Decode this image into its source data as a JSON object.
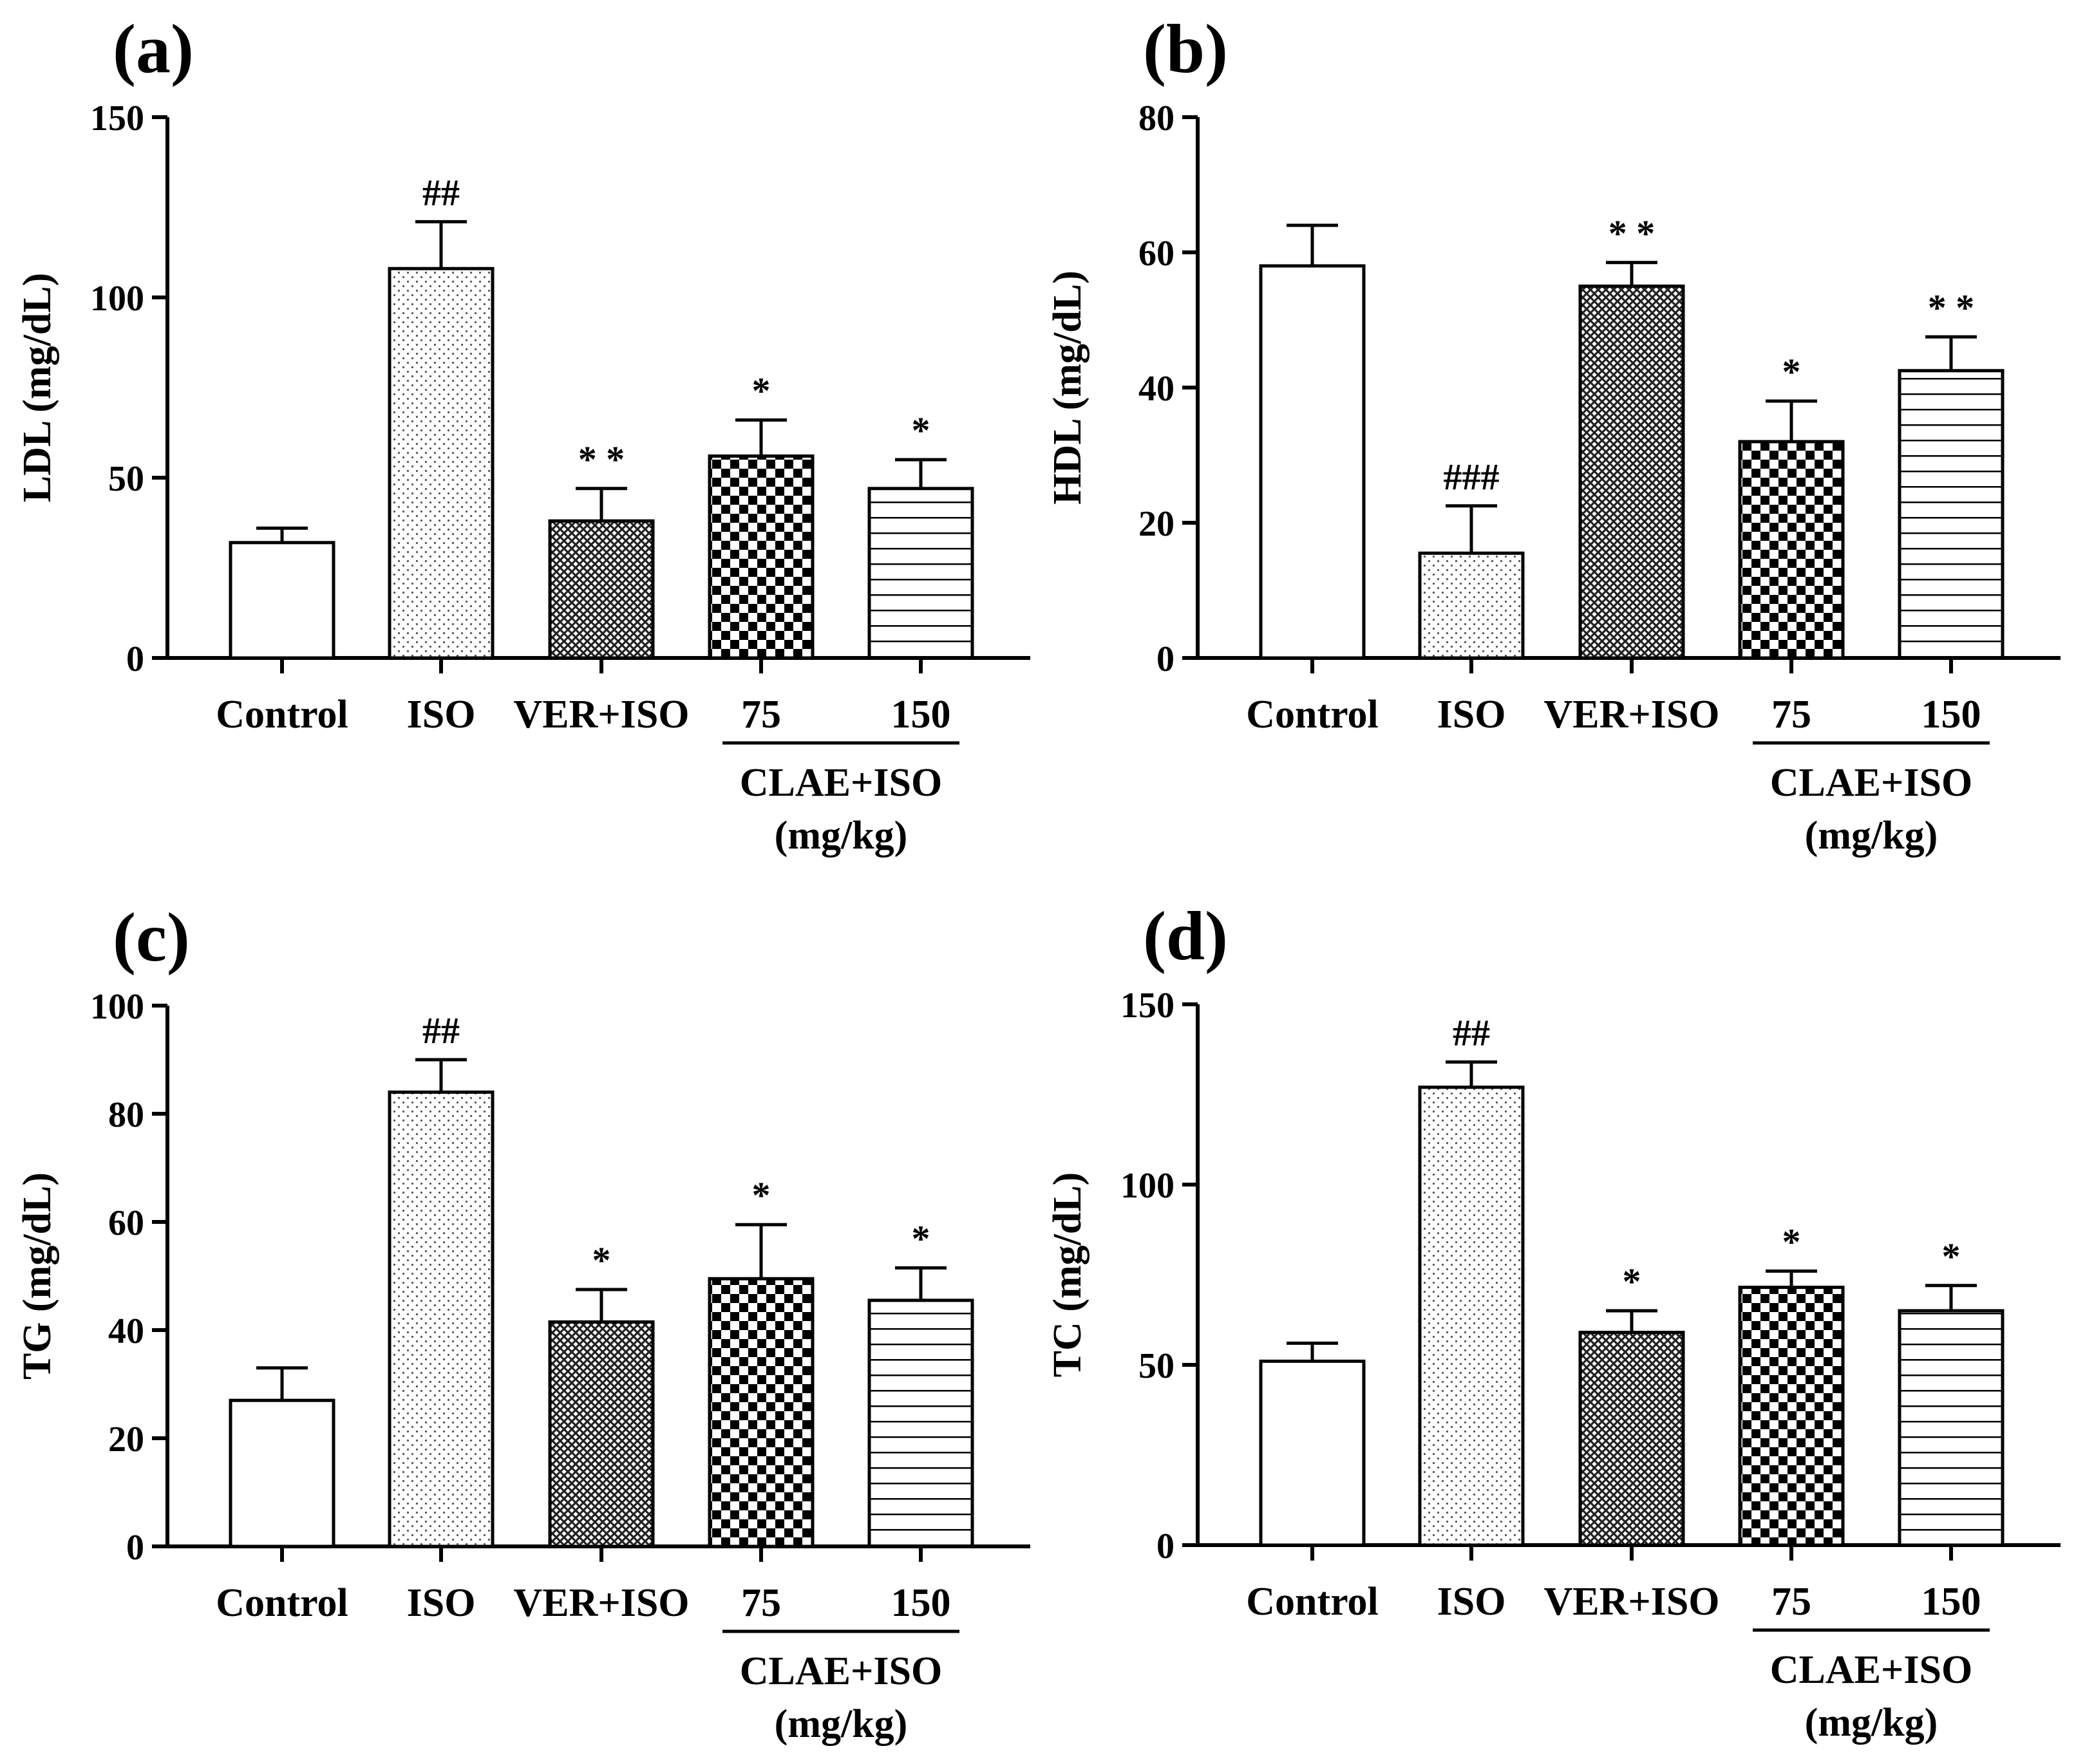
{
  "chart_data": [
    {
      "panel": "(a)",
      "type": "bar",
      "ylabel": "LDL (mg/dL)",
      "ylim": [
        0,
        150
      ],
      "yticks": [
        "0",
        "50",
        "100",
        "150"
      ],
      "categories": [
        "Control",
        "ISO",
        "VER+ISO",
        "75",
        "150"
      ],
      "values": [
        32,
        108,
        38,
        56,
        47
      ],
      "errors": [
        4,
        13,
        9,
        10,
        8
      ],
      "annotations": [
        "",
        "##",
        "* *",
        "*",
        "*"
      ],
      "patterns": [
        "white",
        "dots",
        "crosshatch",
        "checker",
        "hlines"
      ],
      "group_line_label": "CLAE+ISO",
      "group_line_label2": "(mg/kg)"
    },
    {
      "panel": "(b)",
      "type": "bar",
      "ylabel": "HDL (mg/dL)",
      "ylim": [
        0,
        80
      ],
      "yticks": [
        "0",
        "20",
        "40",
        "60",
        "80"
      ],
      "categories": [
        "Control",
        "ISO",
        "VER+ISO",
        "75",
        "150"
      ],
      "values": [
        58,
        15.5,
        55,
        32,
        42.5
      ],
      "errors": [
        6,
        7,
        3.5,
        6,
        5
      ],
      "annotations": [
        "",
        "###",
        "* *",
        "*",
        "* *"
      ],
      "patterns": [
        "white",
        "dots",
        "crosshatch",
        "checker",
        "hlines"
      ],
      "group_line_label": "CLAE+ISO",
      "group_line_label2": "(mg/kg)"
    },
    {
      "panel": "(c)",
      "type": "bar",
      "ylabel": "TG (mg/dL)",
      "ylim": [
        0,
        100
      ],
      "yticks": [
        "0",
        "20",
        "40",
        "60",
        "80",
        "100"
      ],
      "categories": [
        "Control",
        "ISO",
        "VER+ISO",
        "75",
        "150"
      ],
      "values": [
        27,
        84,
        41.5,
        49.5,
        45.5
      ],
      "errors": [
        6,
        6,
        6,
        10,
        6
      ],
      "annotations": [
        "",
        "##",
        "*",
        "*",
        "*"
      ],
      "patterns": [
        "white",
        "dots",
        "crosshatch",
        "checker",
        "hlines"
      ],
      "group_line_label": "CLAE+ISO",
      "group_line_label2": "(mg/kg)"
    },
    {
      "panel": "(d)",
      "type": "bar",
      "ylabel": "TC (mg/dL)",
      "ylim": [
        0,
        150
      ],
      "yticks": [
        "0",
        "50",
        "100",
        "150"
      ],
      "categories": [
        "Control",
        "ISO",
        "VER+ISO",
        "75",
        "150"
      ],
      "values": [
        51,
        127,
        59,
        71.5,
        65
      ],
      "errors": [
        5,
        7,
        6,
        4.5,
        7
      ],
      "annotations": [
        "",
        "##",
        "*",
        "*",
        "*"
      ],
      "patterns": [
        "white",
        "dots",
        "crosshatch",
        "checker",
        "hlines"
      ],
      "group_line_label": "CLAE+ISO",
      "group_line_label2": "(mg/kg)"
    }
  ]
}
